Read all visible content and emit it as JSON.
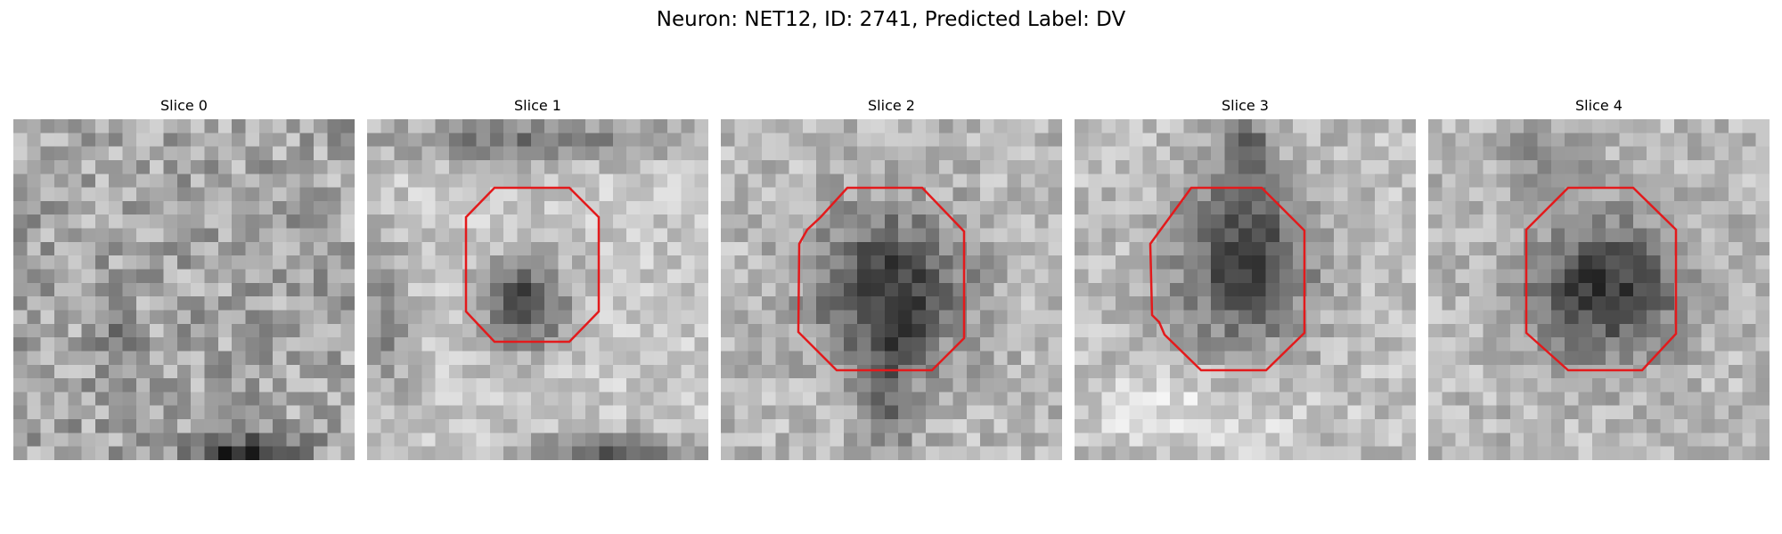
{
  "figure": {
    "title": "Neuron: NET12, ID: 2741, Predicted Label: DV",
    "roi_color": "#e31a1c"
  },
  "slices": [
    {
      "label": "Slice 0",
      "roi": false
    },
    {
      "label": "Slice 1",
      "roi": true
    },
    {
      "label": "Slice 2",
      "roi": true
    },
    {
      "label": "Slice 3",
      "roi": true
    },
    {
      "label": "Slice 4",
      "roi": true
    }
  ]
}
